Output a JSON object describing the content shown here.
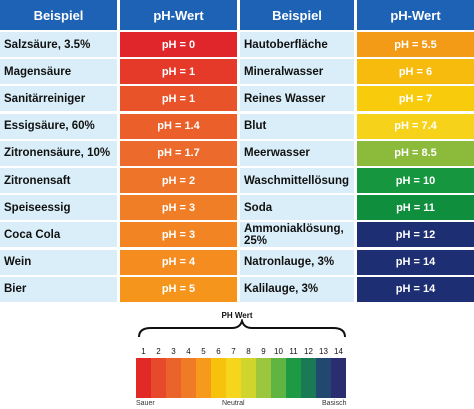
{
  "header": {
    "col1": "Beispiel",
    "col2": "pH-Wert",
    "col3": "Beispiel",
    "col4": "pH-Wert"
  },
  "rows": [
    {
      "left_label": "Salzsäure, 3.5%",
      "left_value": "pH = 0",
      "left_color": "#e0262b",
      "right_label": "Hautoberfläche",
      "right_value": "pH = 5.5",
      "right_color": "#f39a16"
    },
    {
      "left_label": "Magensäure",
      "left_value": "pH = 1",
      "left_color": "#e53a2a",
      "right_label": "Mineralwasser",
      "right_value": "pH = 6",
      "right_color": "#f6bb0c"
    },
    {
      "left_label": "Sanitärreiniger",
      "left_value": "pH = 1",
      "left_color": "#e8532a",
      "right_label": "Reines Wasser",
      "right_value": "pH = 7",
      "right_color": "#f8cc0d"
    },
    {
      "left_label": "Essigsäure, 60%",
      "left_value": "pH = 1.4",
      "left_color": "#ea5f2a",
      "right_label": "Blut",
      "right_value": "pH = 7.4",
      "right_color": "#f7d21a"
    },
    {
      "left_label": "Zitronensäure, 10%",
      "left_value": "pH = 1.7",
      "left_color": "#ec6a2b",
      "right_label": "Meerwasser",
      "right_value": "pH = 8.5",
      "right_color": "#8cbb3c"
    },
    {
      "left_label": "Zitronensaft",
      "left_value": "pH = 2",
      "left_color": "#ee7429",
      "right_label": "Waschmittellösung",
      "right_value": "pH = 10",
      "right_color": "#15963f"
    },
    {
      "left_label": "Speiseessig",
      "left_value": "pH = 3",
      "left_color": "#f07e26",
      "right_label": "Soda",
      "right_value": "pH = 11",
      "right_color": "#0f8f3d"
    },
    {
      "left_label": "Coca Cola",
      "left_value": "pH = 3",
      "left_color": "#f28423",
      "right_label": "Ammoniaklösung, 25%",
      "right_value": "pH = 12",
      "right_color": "#1d2f72"
    },
    {
      "left_label": "Wein",
      "left_value": "pH = 4",
      "left_color": "#f48c1f",
      "right_label": "Natronlauge, 3%",
      "right_value": "pH = 14",
      "right_color": "#1d2f72"
    },
    {
      "left_label": "Bier",
      "left_value": "pH = 5",
      "left_color": "#f5951b",
      "right_label": "Kalilauge, 3%",
      "right_value": "pH = 14",
      "right_color": "#1d2f72"
    }
  ],
  "scale": {
    "title": "PH Wert",
    "numbers": [
      "1",
      "2",
      "3",
      "4",
      "5",
      "6",
      "7",
      "8",
      "9",
      "10",
      "11",
      "12",
      "13",
      "14"
    ],
    "colors": [
      "#e12a26",
      "#e64a2a",
      "#ea632b",
      "#ef7b27",
      "#f59a1a",
      "#f7c20c",
      "#f6d61c",
      "#cfd52c",
      "#9cc63b",
      "#5fb442",
      "#1e9a45",
      "#1a7a55",
      "#23486f",
      "#2a2e70"
    ],
    "label_acid": "Sauer",
    "label_neutral": "Neutral",
    "label_base": "Basisch"
  }
}
